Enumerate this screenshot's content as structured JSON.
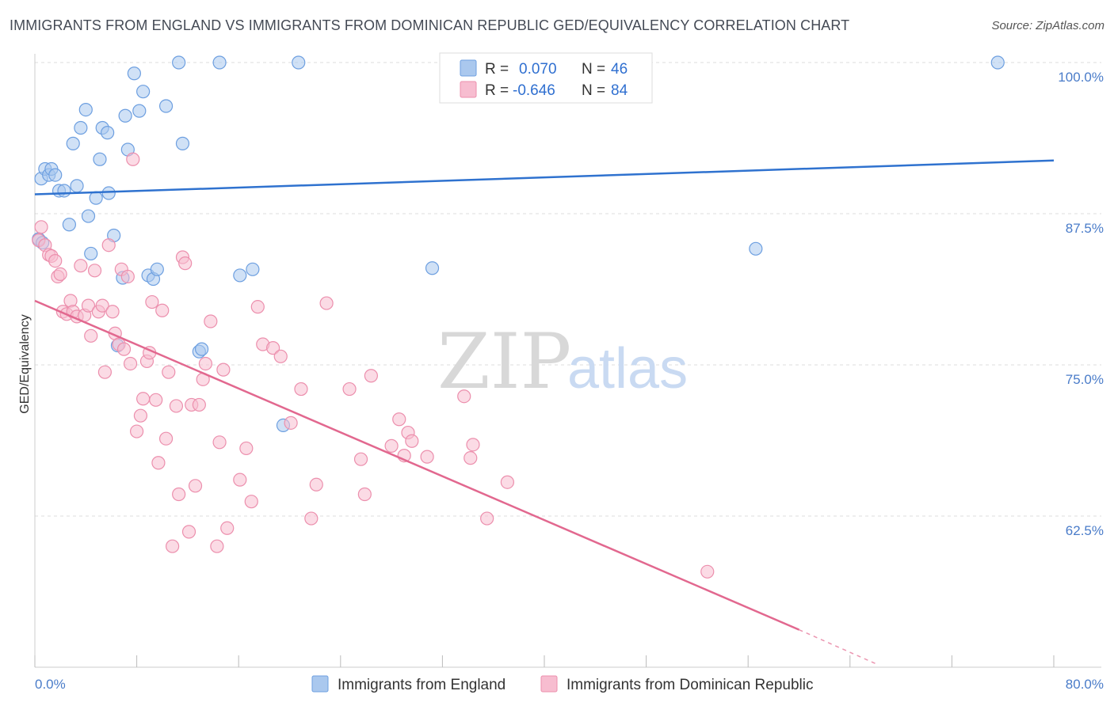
{
  "title": "IMMIGRANTS FROM ENGLAND VS IMMIGRANTS FROM DOMINICAN REPUBLIC GED/EQUIVALENCY CORRELATION CHART",
  "source": "Source: ZipAtlas.com",
  "watermark": {
    "zip": "ZIP",
    "atlas": "atlas"
  },
  "colors": {
    "england_fill": "#aac8ee",
    "england_stroke": "#6d9fe0",
    "england_line": "#2f72cf",
    "dominican_fill": "#f7bdd0",
    "dominican_stroke": "#ec8fad",
    "dominican_line": "#e2688f",
    "tick_text": "#4a7cc9",
    "grid": "#dddddd"
  },
  "legend": {
    "england": {
      "r_label": "R =",
      "r_value": "0.070",
      "n_label": "N =",
      "n_value": "46"
    },
    "dominican": {
      "r_label": "R =",
      "r_value": "-0.646",
      "n_label": "N =",
      "n_value": "84"
    }
  },
  "bottom_legend": {
    "england": "Immigrants from England",
    "dominican": "Immigrants from Dominican Republic"
  },
  "chart_data": {
    "type": "scatter",
    "title": "IMMIGRANTS FROM ENGLAND VS IMMIGRANTS FROM DOMINICAN REPUBLIC GED/EQUIVALENCY CORRELATION CHART",
    "xlabel": "",
    "ylabel": "GED/Equivalency",
    "xlim": [
      0,
      80
    ],
    "ylim": [
      50,
      100
    ],
    "x_tick_labels": [
      "0.0%",
      "80.0%"
    ],
    "y_tick_labels": [
      "100.0%",
      "87.5%",
      "75.0%",
      "62.5%"
    ],
    "y_ticks": [
      100,
      87.5,
      75,
      62.5
    ],
    "grid": true,
    "legend_position": "top-center",
    "series": [
      {
        "name": "Immigrants from England",
        "R": 0.07,
        "N": 46,
        "trend": {
          "x": [
            0,
            80
          ],
          "y": [
            89.1,
            91.9
          ]
        },
        "points": [
          [
            0.5,
            90.4
          ],
          [
            0.8,
            91.2
          ],
          [
            1.1,
            90.7
          ],
          [
            1.3,
            91.2
          ],
          [
            1.6,
            90.7
          ],
          [
            1.9,
            89.4
          ],
          [
            2.3,
            89.4
          ],
          [
            2.7,
            86.6
          ],
          [
            3.0,
            93.3
          ],
          [
            3.3,
            89.8
          ],
          [
            3.6,
            94.6
          ],
          [
            4.0,
            96.1
          ],
          [
            4.2,
            87.3
          ],
          [
            4.4,
            84.2
          ],
          [
            4.8,
            88.8
          ],
          [
            5.1,
            92.0
          ],
          [
            5.3,
            94.6
          ],
          [
            5.7,
            94.2
          ],
          [
            5.8,
            89.2
          ],
          [
            6.2,
            85.7
          ],
          [
            6.5,
            76.6
          ],
          [
            6.9,
            82.2
          ],
          [
            7.1,
            95.6
          ],
          [
            7.3,
            92.8
          ],
          [
            7.8,
            99.1
          ],
          [
            8.2,
            96.0
          ],
          [
            8.5,
            97.6
          ],
          [
            8.9,
            82.4
          ],
          [
            9.3,
            82.1
          ],
          [
            9.6,
            82.9
          ],
          [
            10.3,
            96.4
          ],
          [
            11.3,
            100.0
          ],
          [
            11.6,
            93.3
          ],
          [
            12.9,
            76.1
          ],
          [
            13.1,
            76.3
          ],
          [
            14.5,
            100.0
          ],
          [
            16.1,
            82.4
          ],
          [
            17.1,
            82.9
          ],
          [
            19.5,
            70.0
          ],
          [
            20.7,
            100.0
          ],
          [
            31.2,
            83.0
          ],
          [
            32.6,
            100.0
          ],
          [
            56.6,
            84.6
          ],
          [
            75.6,
            100.0
          ],
          [
            0.3,
            85.4
          ],
          [
            0.6,
            85.1
          ]
        ]
      },
      {
        "name": "Immigrants from Dominican Republic",
        "R": -0.646,
        "N": 84,
        "trend": {
          "x": [
            0,
            60
          ],
          "y": [
            80.3,
            53.1
          ],
          "dashed_to": {
            "x": 66,
            "y": 50.3
          }
        },
        "points": [
          [
            0.3,
            85.3
          ],
          [
            0.5,
            86.4
          ],
          [
            0.8,
            84.9
          ],
          [
            1.1,
            84.1
          ],
          [
            1.3,
            84.0
          ],
          [
            1.6,
            83.6
          ],
          [
            1.8,
            82.3
          ],
          [
            2.0,
            82.5
          ],
          [
            2.2,
            79.4
          ],
          [
            2.5,
            79.2
          ],
          [
            2.8,
            80.3
          ],
          [
            3.0,
            79.4
          ],
          [
            3.3,
            79.0
          ],
          [
            3.6,
            83.2
          ],
          [
            3.9,
            79.1
          ],
          [
            4.2,
            79.9
          ],
          [
            4.4,
            77.4
          ],
          [
            4.7,
            82.8
          ],
          [
            5.0,
            79.4
          ],
          [
            5.3,
            79.9
          ],
          [
            5.5,
            74.4
          ],
          [
            5.8,
            84.9
          ],
          [
            6.1,
            79.4
          ],
          [
            6.3,
            77.6
          ],
          [
            6.6,
            76.7
          ],
          [
            6.8,
            82.9
          ],
          [
            7.0,
            76.3
          ],
          [
            7.3,
            82.3
          ],
          [
            7.5,
            75.1
          ],
          [
            7.7,
            92.0
          ],
          [
            8.0,
            69.5
          ],
          [
            8.3,
            70.8
          ],
          [
            8.5,
            72.2
          ],
          [
            8.8,
            75.3
          ],
          [
            9.0,
            76.0
          ],
          [
            9.2,
            80.2
          ],
          [
            9.5,
            72.1
          ],
          [
            9.7,
            66.9
          ],
          [
            10.0,
            79.5
          ],
          [
            10.3,
            68.9
          ],
          [
            10.5,
            74.4
          ],
          [
            10.8,
            60.0
          ],
          [
            11.1,
            71.6
          ],
          [
            11.3,
            64.3
          ],
          [
            11.6,
            83.9
          ],
          [
            11.8,
            83.4
          ],
          [
            12.1,
            61.2
          ],
          [
            12.3,
            71.7
          ],
          [
            12.6,
            65.0
          ],
          [
            12.9,
            71.7
          ],
          [
            13.2,
            73.8
          ],
          [
            13.4,
            75.1
          ],
          [
            13.8,
            78.6
          ],
          [
            14.3,
            60.0
          ],
          [
            14.5,
            68.6
          ],
          [
            14.8,
            74.6
          ],
          [
            15.1,
            61.5
          ],
          [
            16.1,
            65.5
          ],
          [
            16.6,
            68.1
          ],
          [
            17.0,
            63.7
          ],
          [
            17.5,
            79.8
          ],
          [
            17.9,
            76.7
          ],
          [
            18.7,
            76.4
          ],
          [
            19.3,
            75.7
          ],
          [
            20.1,
            70.2
          ],
          [
            20.9,
            73.0
          ],
          [
            21.7,
            62.3
          ],
          [
            22.1,
            65.1
          ],
          [
            22.9,
            80.1
          ],
          [
            24.7,
            73.0
          ],
          [
            25.6,
            67.2
          ],
          [
            25.9,
            64.3
          ],
          [
            26.4,
            74.1
          ],
          [
            28.0,
            68.3
          ],
          [
            28.6,
            70.5
          ],
          [
            29.0,
            67.5
          ],
          [
            29.3,
            69.4
          ],
          [
            29.6,
            68.7
          ],
          [
            30.8,
            67.4
          ],
          [
            33.7,
            72.4
          ],
          [
            34.2,
            67.3
          ],
          [
            34.4,
            68.4
          ],
          [
            35.5,
            62.3
          ],
          [
            37.1,
            65.3
          ],
          [
            52.8,
            57.9
          ]
        ]
      }
    ]
  }
}
